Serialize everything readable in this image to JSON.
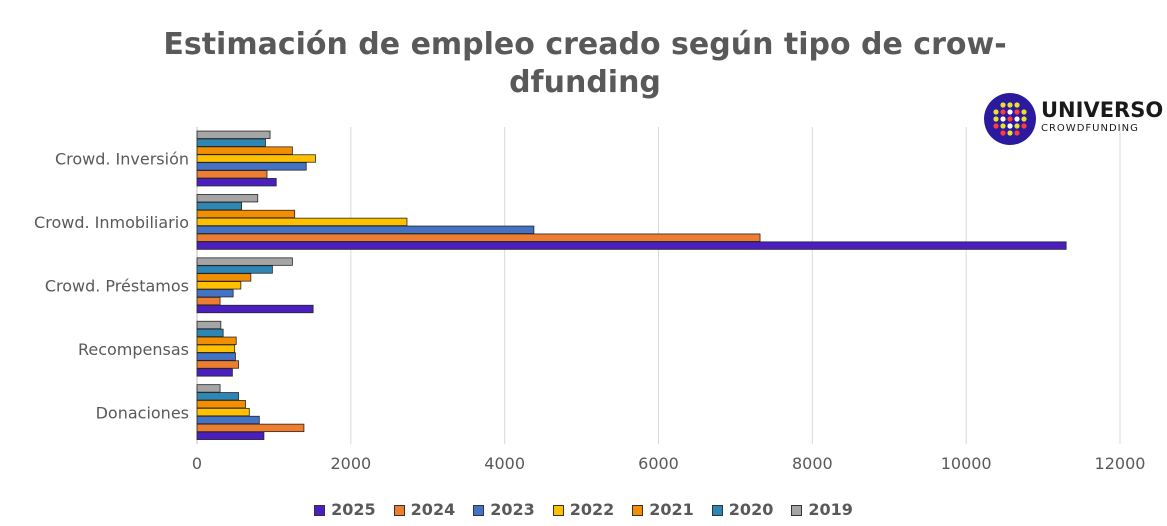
{
  "chart_data": {
    "type": "bar",
    "orientation": "horizontal",
    "title": "Estimación de empleo creado según tipo de crow-dfunding",
    "title_lines": [
      "Estimación de empleo creado según tipo de crow-",
      "dfunding"
    ],
    "categories": [
      "Crowd. Inversión",
      "Crowd. Inmobiliario",
      "Crowd. Préstamos",
      "Recompensas",
      "Donaciones"
    ],
    "series": [
      {
        "name": "2025",
        "color": "#4b1fbf",
        "values": [
          1030,
          11300,
          1510,
          460,
          870
        ]
      },
      {
        "name": "2024",
        "color": "#ed7d31",
        "values": [
          910,
          7320,
          300,
          540,
          1390
        ]
      },
      {
        "name": "2023",
        "color": "#4472c4",
        "values": [
          1420,
          4380,
          470,
          500,
          810
        ]
      },
      {
        "name": "2022",
        "color": "#ffc000",
        "values": [
          1540,
          2730,
          570,
          490,
          680
        ]
      },
      {
        "name": "2021",
        "color": "#f28e00",
        "values": [
          1240,
          1270,
          700,
          510,
          630
        ]
      },
      {
        "name": "2020",
        "color": "#2e86b5",
        "values": [
          890,
          580,
          980,
          340,
          540
        ]
      },
      {
        "name": "2019",
        "color": "#a5a5a5",
        "values": [
          950,
          790,
          1240,
          310,
          300
        ]
      }
    ],
    "xlim": [
      0,
      12000
    ],
    "xticks": [
      "0",
      "2000",
      "4000",
      "6000",
      "8000",
      "10000",
      "12000"
    ],
    "grid": true,
    "legend_position": "bottom"
  },
  "logo": {
    "name": "UNIVERSO",
    "sub": "CROWDFUNDING",
    "colors": [
      "#e8e22a",
      "#ff3b3b",
      "#ffffff",
      "#2b1a9e"
    ]
  }
}
